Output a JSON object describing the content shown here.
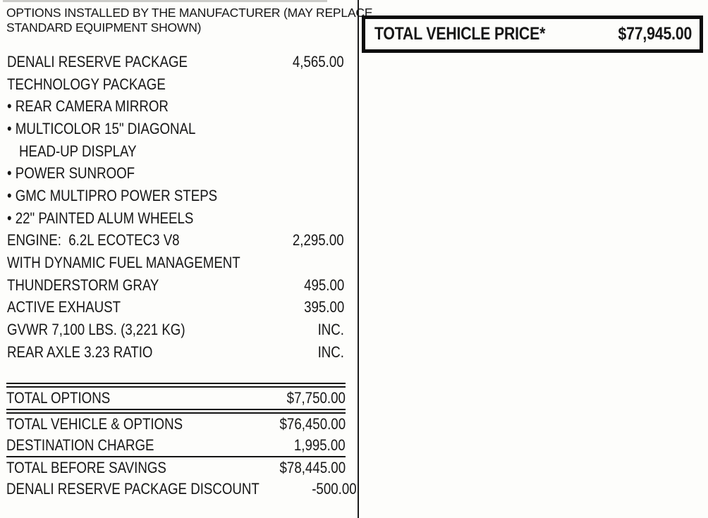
{
  "colors": {
    "ink": "#161616",
    "paper": "#fdfdfb"
  },
  "header": {
    "line1": "OPTIONS INSTALLED BY THE MANUFACTURER (MAY REPLACE",
    "line2": "STANDARD EQUIPMENT SHOWN)"
  },
  "options": {
    "items": [
      {
        "label": "DENALI RESERVE PACKAGE",
        "price": "4,565.00"
      },
      {
        "label": "TECHNOLOGY PACKAGE",
        "price": ""
      },
      {
        "label": "• REAR CAMERA MIRROR",
        "price": ""
      },
      {
        "label": "• MULTICOLOR 15\" DIAGONAL",
        "price": ""
      },
      {
        "label": "HEAD-UP DISPLAY",
        "price": ""
      },
      {
        "label": "• POWER SUNROOF",
        "price": ""
      },
      {
        "label": "• GMC MULTIPRO POWER STEPS",
        "price": ""
      },
      {
        "label": "• 22\" PAINTED ALUM WHEELS",
        "price": ""
      },
      {
        "label": "ENGINE:  6.2L ECOTEC3 V8",
        "price": "2,295.00"
      },
      {
        "label": "WITH DYNAMIC FUEL MANAGEMENT",
        "price": ""
      },
      {
        "label": "THUNDERSTORM GRAY",
        "price": "495.00"
      },
      {
        "label": "ACTIVE EXHAUST",
        "price": "395.00"
      },
      {
        "label": "GVWR 7,100 LBS. (3,221 KG)",
        "price": "INC."
      },
      {
        "label": "REAR AXLE 3.23 RATIO",
        "price": "INC."
      }
    ]
  },
  "totals": {
    "rows": [
      {
        "label": "TOTAL OPTIONS",
        "value": "$7,750.00"
      },
      {
        "label": "TOTAL VEHICLE & OPTIONS",
        "value": "$76,450.00"
      },
      {
        "label": "DESTINATION CHARGE",
        "value": "1,995.00"
      },
      {
        "label": "TOTAL BEFORE SAVINGS",
        "value": "$78,445.00"
      },
      {
        "label": "DENALI RESERVE PACKAGE DISCOUNT",
        "value": "-500.00"
      }
    ]
  },
  "price_box": {
    "label": "TOTAL VEHICLE PRICE*",
    "value": "$77,945.00"
  }
}
